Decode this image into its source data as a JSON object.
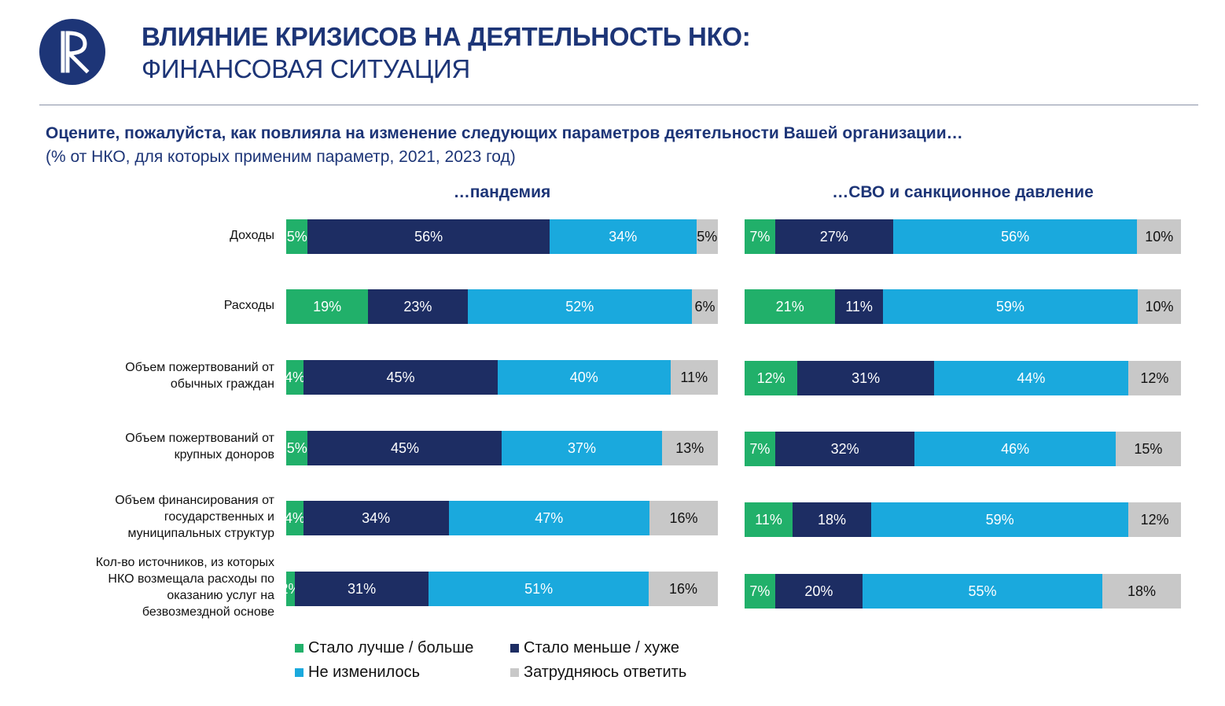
{
  "header": {
    "title_line1": "ВЛИЯНИЕ КРИЗИСОВ НА ДЕЯТЕЛЬНОСТЬ НКО:",
    "title_line2": "ФИНАНСОВАЯ СИТУАЦИЯ",
    "question": "Оцените, пожалуйста, как повлияла на изменение следующих параметров деятельности Вашей организации…",
    "note": "(% от НКО, для которых применим параметр, 2021, 2023 год)"
  },
  "colors": {
    "better": "#21b06a",
    "worse": "#1d2d63",
    "unchanged": "#1aa9dd",
    "unknown": "#c8c8c8",
    "brand": "#1d3577"
  },
  "logo": {
    "icon": "hse-logo-icon"
  },
  "chart_data": {
    "type": "bar",
    "orientation": "horizontal",
    "stacked": true,
    "normalized": true,
    "categories": [
      "Доходы",
      "Расходы",
      "Объем пожертвований от обычных граждан",
      "Объем пожертвований от крупных доноров",
      "Объем финансирования от государственных и муниципальных структур",
      "Кол-во источников, из которых НКО возмещала расходы по оказанию услуг на безвозмездной основе"
    ],
    "category_lines": [
      [
        "Доходы"
      ],
      [
        "Расходы"
      ],
      [
        "Объем пожертвований от",
        "обычных граждан"
      ],
      [
        "Объем пожертвований от",
        "крупных доноров"
      ],
      [
        "Объем финансирования от",
        "государственных и",
        "муниципальных структур"
      ],
      [
        "Кол-во источников, из которых",
        "НКО возмещала расходы по",
        "оказанию услуг на",
        "безвозмездной основе"
      ]
    ],
    "legend": [
      {
        "key": "better",
        "label": "Стало лучше / больше"
      },
      {
        "key": "worse",
        "label": "Стало меньше / хуже"
      },
      {
        "key": "unchanged",
        "label": "Не изменилось"
      },
      {
        "key": "unknown",
        "label": "Затрудняюсь ответить"
      }
    ],
    "panels": [
      {
        "title": "…пандемия",
        "series": [
          {
            "name": "Стало лучше / больше",
            "key": "better",
            "values": [
              5,
              19,
              4,
              5,
              4,
              2
            ]
          },
          {
            "name": "Стало меньше / хуже",
            "key": "worse",
            "values": [
              56,
              23,
              45,
              45,
              34,
              31
            ]
          },
          {
            "name": "Не изменилось",
            "key": "unchanged",
            "values": [
              34,
              52,
              40,
              37,
              47,
              51
            ]
          },
          {
            "name": "Затрудняюсь ответить",
            "key": "unknown",
            "values": [
              5,
              6,
              11,
              13,
              16,
              16
            ]
          }
        ]
      },
      {
        "title": "…СВО и санкционное давление",
        "series": [
          {
            "name": "Стало лучше / больше",
            "key": "better",
            "values": [
              7,
              21,
              12,
              7,
              11,
              7
            ]
          },
          {
            "name": "Стало меньше / хуже",
            "key": "worse",
            "values": [
              27,
              11,
              31,
              32,
              18,
              20
            ]
          },
          {
            "name": "Не изменилось",
            "key": "unchanged",
            "values": [
              56,
              59,
              44,
              46,
              59,
              55
            ]
          },
          {
            "name": "Затрудняюсь ответить",
            "key": "unknown",
            "values": [
              10,
              10,
              12,
              15,
              12,
              18
            ]
          }
        ]
      }
    ]
  }
}
